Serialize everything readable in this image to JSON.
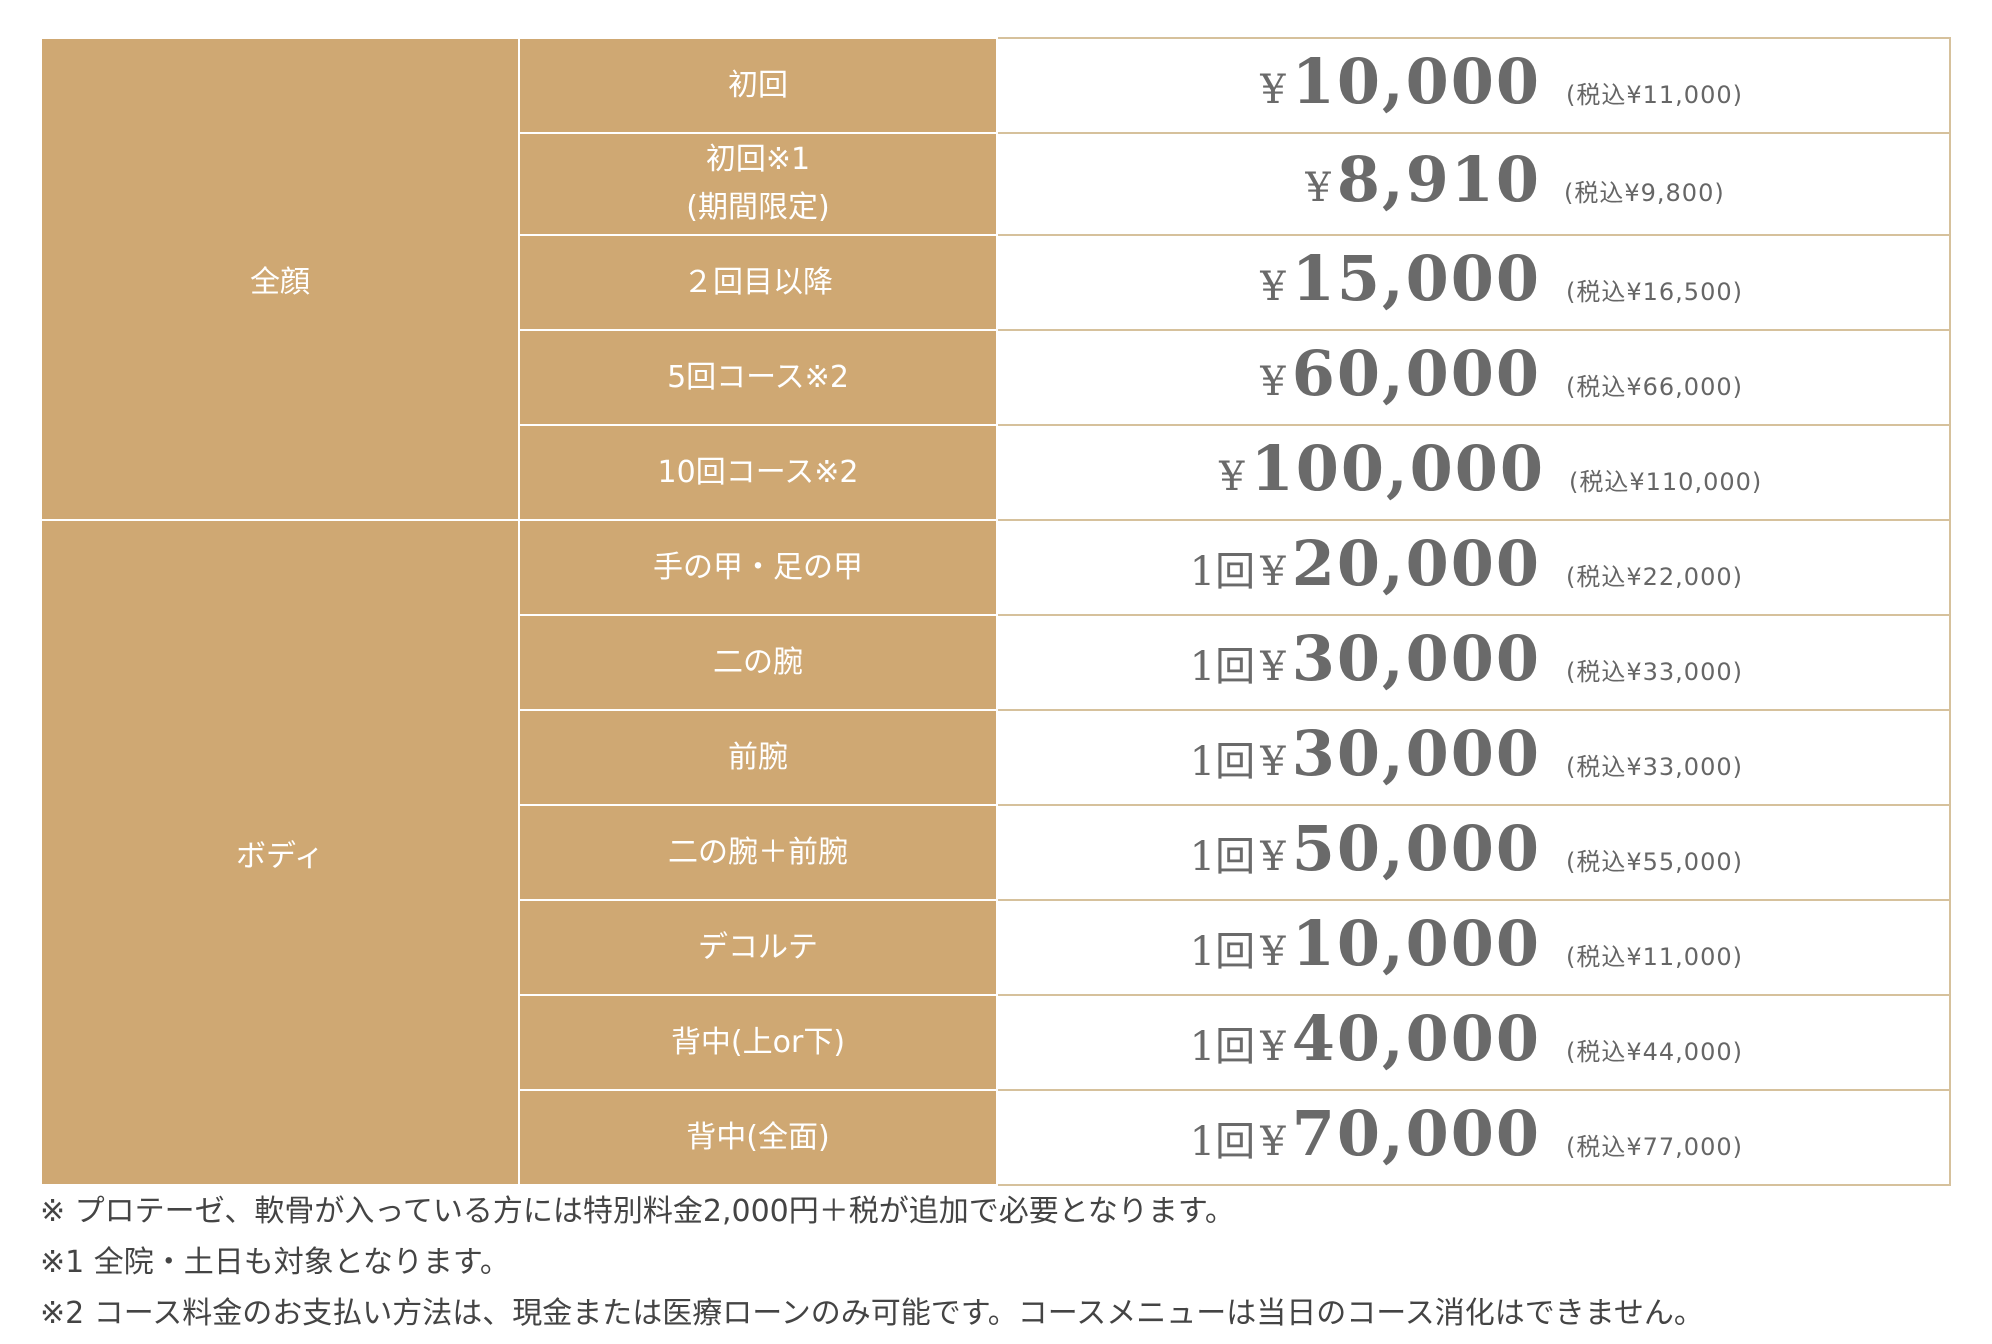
{
  "table": {
    "categories": {
      "face": "全顔",
      "body": "ボディ"
    },
    "rows": [
      {
        "item": "初回",
        "item_sub": "",
        "prefix": "",
        "yen": "¥",
        "amount": "10,000",
        "tax": "(税込¥11,000)"
      },
      {
        "item": "初回※1",
        "item_sub": "(期間限定)",
        "prefix": "",
        "yen": "¥",
        "amount": "8,910",
        "tax": "(税込¥9,800)"
      },
      {
        "item": "２回目以降",
        "item_sub": "",
        "prefix": "",
        "yen": "¥",
        "amount": "15,000",
        "tax": "(税込¥16,500)"
      },
      {
        "item": "5回コース※2",
        "item_sub": "",
        "prefix": "",
        "yen": "¥",
        "amount": "60,000",
        "tax": "(税込¥66,000)"
      },
      {
        "item": "10回コース※2",
        "item_sub": "",
        "prefix": "",
        "yen": "¥",
        "amount": "100,000",
        "tax": "(税込¥110,000)"
      },
      {
        "item": "手の甲・足の甲",
        "item_sub": "",
        "prefix": "1回",
        "yen": "¥",
        "amount": "20,000",
        "tax": "(税込¥22,000)"
      },
      {
        "item": "二の腕",
        "item_sub": "",
        "prefix": "1回",
        "yen": "¥",
        "amount": "30,000",
        "tax": "(税込¥33,000)"
      },
      {
        "item": "前腕",
        "item_sub": "",
        "prefix": "1回",
        "yen": "¥",
        "amount": "30,000",
        "tax": "(税込¥33,000)"
      },
      {
        "item": "二の腕＋前腕",
        "item_sub": "",
        "prefix": "1回",
        "yen": "¥",
        "amount": "50,000",
        "tax": "(税込¥55,000)"
      },
      {
        "item": "デコルテ",
        "item_sub": "",
        "prefix": "1回",
        "yen": "¥",
        "amount": "10,000",
        "tax": "(税込¥11,000)"
      },
      {
        "item": "背中(上or下)",
        "item_sub": "",
        "prefix": "1回",
        "yen": "¥",
        "amount": "40,000",
        "tax": "(税込¥44,000)"
      },
      {
        "item": "背中(全面)",
        "item_sub": "",
        "prefix": "1回",
        "yen": "¥",
        "amount": "70,000",
        "tax": "(税込¥77,000)"
      }
    ]
  },
  "notes": [
    "※ プロテーゼ、軟骨が入っている方には特別料金2,000円＋税が追加で必要となります。",
    "※1 全院・土日も対象となります。",
    "※2 コース料金のお支払い方法は、現金または医療ローンのみ可能です。コースメニューは当日のコース消化はできません。"
  ],
  "colors": {
    "category_bg": "#cfa873",
    "border": "#d6c19c",
    "price_text": "#6a6a6a"
  }
}
